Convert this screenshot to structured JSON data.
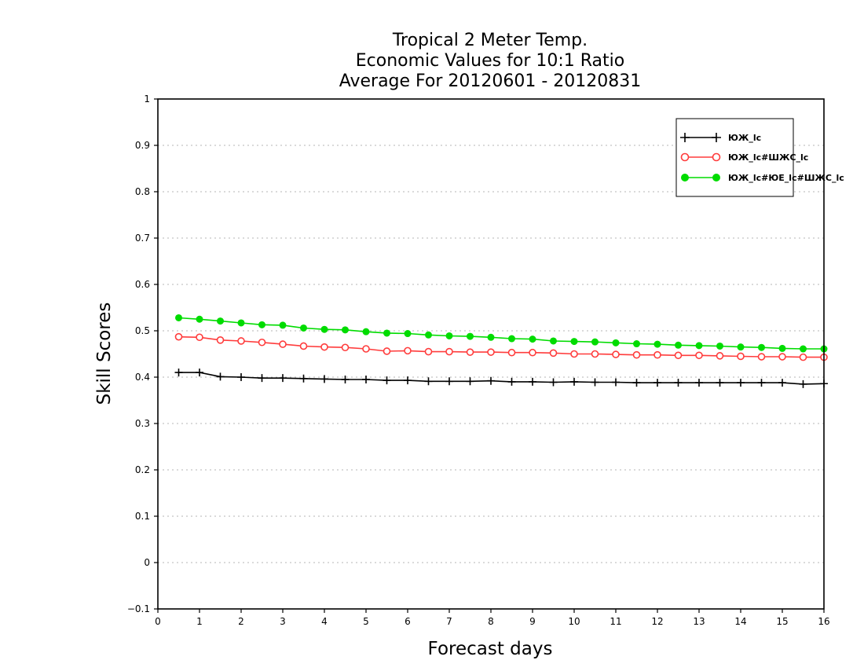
{
  "chart_data": {
    "type": "line",
    "title_lines": [
      "Tropical 2 Meter Temp.",
      "Economic Values for 10:1 Ratio",
      "Average For 20120601 - 20120831"
    ],
    "xlabel": "Forecast days",
    "ylabel": "Skill Scores",
    "xlim": [
      0,
      16
    ],
    "ylim": [
      -0.1,
      1
    ],
    "x_ticks": [
      0,
      1,
      2,
      3,
      4,
      5,
      6,
      7,
      8,
      9,
      10,
      11,
      12,
      13,
      14,
      15,
      16
    ],
    "y_ticks": [
      -0.1,
      0,
      0.1,
      0.2,
      0.3,
      0.4,
      0.5,
      0.6,
      0.7,
      0.8,
      0.9,
      1
    ],
    "y_tick_labels": [
      "−0.1",
      "0",
      "0.1",
      "0.2",
      "0.3",
      "0.4",
      "0.5",
      "0.6",
      "0.7",
      "0.8",
      "0.9",
      "1"
    ],
    "grid": "horizontal dotted",
    "legend_position": "top-right",
    "x": [
      0.5,
      1,
      1.5,
      2,
      2.5,
      3,
      3.5,
      4,
      4.5,
      5,
      5.5,
      6,
      6.5,
      7,
      7.5,
      8,
      8.5,
      9,
      9.5,
      10,
      10.5,
      11,
      11.5,
      12,
      12.5,
      13,
      13.5,
      14,
      14.5,
      15,
      15.5,
      16
    ],
    "series": [
      {
        "name": "ЮЖ_lс",
        "color": "#000000",
        "marker": "plus",
        "values": [
          0.41,
          0.41,
          0.401,
          0.4,
          0.398,
          0.398,
          0.397,
          0.396,
          0.395,
          0.395,
          0.393,
          0.393,
          0.391,
          0.391,
          0.391,
          0.392,
          0.39,
          0.39,
          0.389,
          0.39,
          0.389,
          0.389,
          0.388,
          0.388,
          0.388,
          0.388,
          0.388,
          0.388,
          0.388,
          0.388,
          0.385,
          0.386
        ]
      },
      {
        "name": "ЮЖ_lс#ШЖС_lс",
        "color": "#ff3c3c",
        "marker": "open-circle",
        "values": [
          0.487,
          0.486,
          0.48,
          0.478,
          0.475,
          0.471,
          0.467,
          0.465,
          0.464,
          0.461,
          0.456,
          0.457,
          0.455,
          0.455,
          0.454,
          0.454,
          0.453,
          0.453,
          0.452,
          0.45,
          0.45,
          0.449,
          0.448,
          0.448,
          0.447,
          0.447,
          0.446,
          0.445,
          0.444,
          0.444,
          0.443,
          0.443
        ]
      },
      {
        "name": "ЮЖ_lс#ЮЕ_lс#ШЖС_lс",
        "color": "#00dc00",
        "marker": "filled-circle",
        "values": [
          0.528,
          0.525,
          0.521,
          0.517,
          0.513,
          0.512,
          0.506,
          0.503,
          0.502,
          0.498,
          0.495,
          0.494,
          0.491,
          0.489,
          0.488,
          0.486,
          0.483,
          0.482,
          0.478,
          0.477,
          0.476,
          0.474,
          0.472,
          0.471,
          0.469,
          0.468,
          0.467,
          0.465,
          0.464,
          0.462,
          0.461,
          0.461
        ]
      }
    ]
  }
}
